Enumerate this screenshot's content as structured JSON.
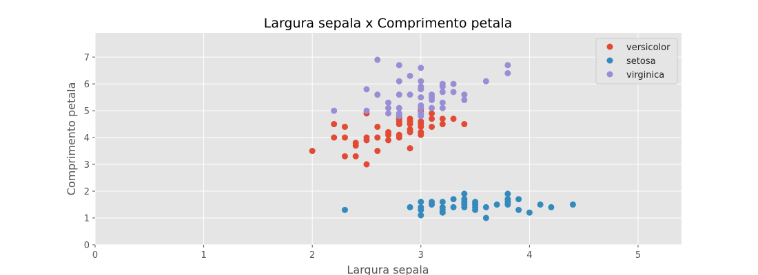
{
  "chart_data": {
    "type": "scatter",
    "title": "Largura sepala x Comprimento petala",
    "xlabel": "Largura sepala",
    "ylabel": "Comprimento petala",
    "xlim": [
      0,
      5.4
    ],
    "ylim": [
      0,
      7.9
    ],
    "xticks": [
      0,
      1,
      2,
      3,
      4,
      5
    ],
    "yticks": [
      0,
      1,
      2,
      3,
      4,
      5,
      6,
      7
    ],
    "grid": true,
    "legend_position": "top-right",
    "style": {
      "plot_background": "#e5e5e5",
      "grid_color": "#ffffff"
    },
    "series": [
      {
        "name": "versicolor",
        "color": "#e24a33",
        "points": [
          [
            2.0,
            3.5
          ],
          [
            2.2,
            4.5
          ],
          [
            2.2,
            4.0
          ],
          [
            2.3,
            4.4
          ],
          [
            2.3,
            4.0
          ],
          [
            2.3,
            3.3
          ],
          [
            2.4,
            3.8
          ],
          [
            2.4,
            3.7
          ],
          [
            2.4,
            3.3
          ],
          [
            2.5,
            4.9
          ],
          [
            2.5,
            4.0
          ],
          [
            2.5,
            3.9
          ],
          [
            2.5,
            3.0
          ],
          [
            2.6,
            4.4
          ],
          [
            2.6,
            4.0
          ],
          [
            2.6,
            3.5
          ],
          [
            2.7,
            4.2
          ],
          [
            2.7,
            4.1
          ],
          [
            2.7,
            3.9
          ],
          [
            2.8,
            4.8
          ],
          [
            2.8,
            4.7
          ],
          [
            2.8,
            4.6
          ],
          [
            2.8,
            4.5
          ],
          [
            2.8,
            4.1
          ],
          [
            2.8,
            4.0
          ],
          [
            2.9,
            4.7
          ],
          [
            2.9,
            4.6
          ],
          [
            2.9,
            4.5
          ],
          [
            2.9,
            4.3
          ],
          [
            2.9,
            4.2
          ],
          [
            2.9,
            3.6
          ],
          [
            3.0,
            5.0
          ],
          [
            3.0,
            4.6
          ],
          [
            3.0,
            4.5
          ],
          [
            3.0,
            4.4
          ],
          [
            3.0,
            4.2
          ],
          [
            3.0,
            4.1
          ],
          [
            3.1,
            4.9
          ],
          [
            3.1,
            4.7
          ],
          [
            3.1,
            4.4
          ],
          [
            3.2,
            4.7
          ],
          [
            3.2,
            4.5
          ],
          [
            3.3,
            4.7
          ],
          [
            3.4,
            4.5
          ]
        ]
      },
      {
        "name": "setosa",
        "color": "#348abd",
        "points": [
          [
            2.3,
            1.3
          ],
          [
            2.9,
            1.4
          ],
          [
            3.0,
            1.6
          ],
          [
            3.0,
            1.4
          ],
          [
            3.0,
            1.3
          ],
          [
            3.0,
            1.1
          ],
          [
            3.1,
            1.6
          ],
          [
            3.1,
            1.5
          ],
          [
            3.2,
            1.6
          ],
          [
            3.2,
            1.4
          ],
          [
            3.2,
            1.3
          ],
          [
            3.2,
            1.2
          ],
          [
            3.3,
            1.7
          ],
          [
            3.3,
            1.4
          ],
          [
            3.4,
            1.9
          ],
          [
            3.4,
            1.7
          ],
          [
            3.4,
            1.6
          ],
          [
            3.4,
            1.5
          ],
          [
            3.4,
            1.4
          ],
          [
            3.5,
            1.6
          ],
          [
            3.5,
            1.5
          ],
          [
            3.5,
            1.4
          ],
          [
            3.5,
            1.3
          ],
          [
            3.6,
            1.4
          ],
          [
            3.6,
            1.0
          ],
          [
            3.7,
            1.5
          ],
          [
            3.8,
            1.9
          ],
          [
            3.8,
            1.7
          ],
          [
            3.8,
            1.6
          ],
          [
            3.8,
            1.5
          ],
          [
            3.9,
            1.7
          ],
          [
            3.9,
            1.3
          ],
          [
            4.0,
            1.2
          ],
          [
            4.1,
            1.5
          ],
          [
            4.2,
            1.4
          ],
          [
            4.4,
            1.5
          ]
        ]
      },
      {
        "name": "virginica",
        "color": "#988ed5",
        "points": [
          [
            2.2,
            5.0
          ],
          [
            2.5,
            5.8
          ],
          [
            2.5,
            5.0
          ],
          [
            2.6,
            6.9
          ],
          [
            2.6,
            5.6
          ],
          [
            2.7,
            5.3
          ],
          [
            2.7,
            5.1
          ],
          [
            2.7,
            4.9
          ],
          [
            2.8,
            6.7
          ],
          [
            2.8,
            6.1
          ],
          [
            2.8,
            5.6
          ],
          [
            2.8,
            5.1
          ],
          [
            2.8,
            4.9
          ],
          [
            2.8,
            4.8
          ],
          [
            2.9,
            6.3
          ],
          [
            2.9,
            5.6
          ],
          [
            3.0,
            6.6
          ],
          [
            3.0,
            6.1
          ],
          [
            3.0,
            5.9
          ],
          [
            3.0,
            5.8
          ],
          [
            3.0,
            5.5
          ],
          [
            3.0,
            5.2
          ],
          [
            3.0,
            5.1
          ],
          [
            3.0,
            4.9
          ],
          [
            3.0,
            4.8
          ],
          [
            3.1,
            5.6
          ],
          [
            3.1,
            5.5
          ],
          [
            3.1,
            5.4
          ],
          [
            3.1,
            5.1
          ],
          [
            3.2,
            6.0
          ],
          [
            3.2,
            5.9
          ],
          [
            3.2,
            5.7
          ],
          [
            3.2,
            5.3
          ],
          [
            3.2,
            5.1
          ],
          [
            3.3,
            6.0
          ],
          [
            3.3,
            5.7
          ],
          [
            3.4,
            5.6
          ],
          [
            3.4,
            5.4
          ],
          [
            3.6,
            6.1
          ],
          [
            3.8,
            6.7
          ],
          [
            3.8,
            6.4
          ]
        ]
      }
    ]
  }
}
